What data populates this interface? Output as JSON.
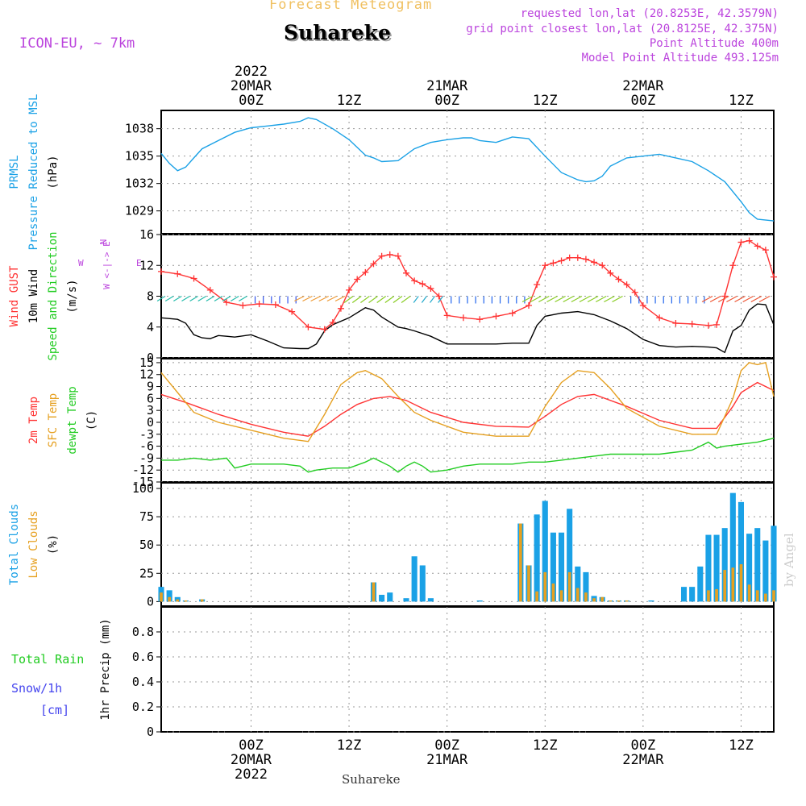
{
  "header": {
    "product": "Forecast Meteogram",
    "station": "Suhareke",
    "model": "ICON-EU, ~ 7km",
    "requested": "requested lon,lat (20.8253E, 42.3579N)",
    "grid": "grid point closest lon,lat (20.8125E, 42.375N)",
    "point_alt": "Point Altitude 400m",
    "model_alt": "Model Point Altitude 493.125m",
    "footer_station": "Suhareke",
    "credit": "by Angel"
  },
  "time_axis": {
    "top_labels": [
      {
        "hour": 24,
        "lines": [
          "2022",
          "20MAR",
          "00Z"
        ]
      },
      {
        "hour": 36,
        "lines": [
          "12Z"
        ]
      },
      {
        "hour": 48,
        "lines": [
          "21MAR",
          "00Z"
        ]
      },
      {
        "hour": 60,
        "lines": [
          "12Z"
        ]
      },
      {
        "hour": 72,
        "lines": [
          "22MAR",
          "00Z"
        ]
      },
      {
        "hour": 84,
        "lines": [
          "12Z"
        ]
      }
    ],
    "bottom_labels": [
      {
        "hour": 24,
        "lines": [
          "00Z",
          "20MAR",
          "2022"
        ]
      },
      {
        "hour": 36,
        "lines": [
          "12Z"
        ]
      },
      {
        "hour": 48,
        "lines": [
          "00Z",
          "21MAR"
        ]
      },
      {
        "hour": 60,
        "lines": [
          "12Z"
        ]
      },
      {
        "hour": 72,
        "lines": [
          "00Z",
          "22MAR"
        ]
      },
      {
        "hour": 84,
        "lines": [
          "12Z"
        ]
      }
    ],
    "range_hours": [
      13,
      88
    ],
    "grid_hours": [
      24,
      36,
      48,
      60,
      72,
      84
    ]
  },
  "panels": {
    "pressure": {
      "labels": [
        {
          "text": "PRMSL",
          "color": "#1aa1e6"
        },
        {
          "text": "Pressure Reduced to MSL",
          "color": "#1aa1e6"
        },
        {
          "text": "(hPa)",
          "color": "#000000"
        }
      ],
      "ticks": [
        1029,
        1032,
        1035,
        1038
      ],
      "range": [
        1026.5,
        1040
      ]
    },
    "wind": {
      "labels": [
        {
          "text": "Wind GUST",
          "color": "#ff3333"
        },
        {
          "text": "10m Wind",
          "color": "#000000"
        },
        {
          "text": "Speed and Direction",
          "color": "#22cc22"
        },
        {
          "text": "(m/s)",
          "color": "#000000"
        }
      ],
      "ticks": [
        0,
        4,
        8,
        12,
        16
      ],
      "range": [
        0,
        16
      ],
      "compass": "N W <-|-> E S"
    },
    "temp": {
      "labels": [
        {
          "text": "2m Temp",
          "color": "#ff3333"
        },
        {
          "text": "SFC Temp",
          "color": "#e6a020"
        },
        {
          "text": "dewpt Temp",
          "color": "#22cc22"
        },
        {
          "text": "(C)",
          "color": "#000000"
        }
      ],
      "ticks": [
        -15,
        -12,
        -9,
        -6,
        -3,
        0,
        3,
        6,
        9,
        12,
        15
      ],
      "range": [
        -15,
        16
      ]
    },
    "clouds": {
      "labels": [
        {
          "text": "Total Clouds",
          "color": "#1aa1e6"
        },
        {
          "text": "Low Clouds",
          "color": "#e6a020"
        },
        {
          "text": "(%)",
          "color": "#000000"
        }
      ],
      "ticks": [
        0,
        25,
        50,
        75,
        100
      ],
      "range": [
        -4,
        105
      ]
    },
    "precip": {
      "labels": [
        {
          "text": "1hr Precip (mm)",
          "color": "#000000"
        }
      ],
      "side_labels": [
        {
          "text": "Total  Rain",
          "color": "#22cc22"
        },
        {
          "text": "Snow/1h",
          "color": "#4444ee"
        },
        {
          "text": "[cm]",
          "color": "#4444ee"
        }
      ],
      "ticks": [
        0,
        0.2,
        0.4,
        0.6,
        0.8
      ],
      "range": [
        0,
        1
      ]
    }
  },
  "colors": {
    "pressure": "#1aa1e6",
    "gust": "#ff3333",
    "wind": "#000000",
    "t2m": "#ff3333",
    "sfc": "#e6a020",
    "dew": "#22cc22",
    "total_clouds": "#1aa1e6",
    "low_clouds": "#e6a020",
    "grid": "#999999",
    "title_orange": "#f0c060",
    "purple": "#bb44dd"
  },
  "chart_data": [
    {
      "type": "line",
      "name": "pressure",
      "ylabel": "PRMSL Pressure Reduced to MSL (hPa)",
      "x": [
        13,
        14,
        15,
        16,
        17,
        18,
        20,
        22,
        24,
        26,
        28,
        30,
        31,
        32,
        34,
        36,
        38,
        39,
        40,
        42,
        44,
        46,
        48,
        50,
        51,
        52,
        54,
        55,
        56,
        58,
        60,
        62,
        64,
        65,
        66,
        67,
        68,
        70,
        72,
        74,
        76,
        78,
        80,
        82,
        84,
        85,
        86,
        88
      ],
      "y": [
        1035.3,
        1034.2,
        1033.4,
        1033.8,
        1034.8,
        1035.8,
        1036.7,
        1037.6,
        1038.1,
        1038.3,
        1038.5,
        1038.8,
        1039.2,
        1039.0,
        1038.0,
        1036.8,
        1035.1,
        1034.8,
        1034.4,
        1034.5,
        1035.8,
        1036.5,
        1036.8,
        1037.0,
        1037.0,
        1036.7,
        1036.5,
        1036.8,
        1037.1,
        1036.9,
        1035.0,
        1033.2,
        1032.4,
        1032.2,
        1032.3,
        1032.8,
        1033.9,
        1034.8,
        1035.0,
        1035.2,
        1034.8,
        1034.4,
        1033.4,
        1032.2,
        1030.0,
        1028.8,
        1028.1,
        1027.9
      ]
    },
    {
      "type": "line",
      "name": "wind_gust",
      "ylabel": "Wind GUST (m/s)",
      "x": [
        13,
        15,
        17,
        19,
        21,
        23,
        25,
        27,
        29,
        31,
        33,
        34,
        35,
        36,
        37,
        38,
        39,
        40,
        41,
        42,
        43,
        44,
        45,
        46,
        47,
        48,
        50,
        52,
        54,
        56,
        58,
        59,
        60,
        61,
        62,
        63,
        64,
        65,
        66,
        67,
        68,
        69,
        70,
        71,
        72,
        74,
        76,
        78,
        80,
        81,
        82,
        83,
        84,
        85,
        86,
        87,
        88
      ],
      "y": [
        11.2,
        10.9,
        10.3,
        8.8,
        7.2,
        6.8,
        7.0,
        6.9,
        6.0,
        4.0,
        3.7,
        4.6,
        6.4,
        8.8,
        10.2,
        11.1,
        12.2,
        13.2,
        13.4,
        13.2,
        11.0,
        10.0,
        9.6,
        9.0,
        8.0,
        5.5,
        5.2,
        5.0,
        5.4,
        5.8,
        6.8,
        9.5,
        12.0,
        12.3,
        12.6,
        13.0,
        13.0,
        12.8,
        12.4,
        12.0,
        11.0,
        10.2,
        9.5,
        8.5,
        6.8,
        5.2,
        4.5,
        4.4,
        4.2,
        4.3,
        8.0,
        12.0,
        15.0,
        15.2,
        14.5,
        14.0,
        10.5
      ]
    },
    {
      "type": "line",
      "name": "wind_10m",
      "ylabel": "10m Wind (m/s)",
      "x": [
        13,
        15,
        16,
        17,
        18,
        19,
        20,
        21,
        22,
        24,
        26,
        28,
        30,
        31,
        32,
        33,
        34,
        36,
        38,
        39,
        40,
        42,
        43,
        44,
        46,
        48,
        50,
        52,
        54,
        56,
        58,
        59,
        60,
        62,
        64,
        66,
        68,
        70,
        72,
        74,
        76,
        78,
        80,
        81,
        82,
        83,
        84,
        85,
        86,
        87,
        88
      ],
      "y": [
        5.2,
        5.0,
        4.5,
        3.0,
        2.6,
        2.5,
        2.9,
        2.8,
        2.7,
        3.0,
        2.2,
        1.3,
        1.2,
        1.2,
        1.8,
        3.5,
        4.3,
        5.2,
        6.5,
        6.2,
        5.3,
        4.0,
        3.8,
        3.5,
        2.8,
        1.8,
        1.8,
        1.8,
        1.8,
        1.9,
        1.9,
        4.2,
        5.4,
        5.8,
        6.0,
        5.6,
        4.8,
        3.8,
        2.4,
        1.6,
        1.4,
        1.5,
        1.4,
        1.3,
        0.7,
        3.5,
        4.2,
        6.2,
        7.0,
        6.9,
        4.3
      ]
    },
    {
      "type": "line",
      "name": "t2m",
      "ylabel": "2m Temp (C)",
      "x": [
        13,
        16,
        20,
        24,
        28,
        31,
        33,
        35,
        37,
        39,
        41,
        43,
        46,
        50,
        54,
        58,
        60,
        62,
        64,
        66,
        70,
        74,
        78,
        81,
        83,
        84,
        86,
        88
      ],
      "y": [
        7.0,
        5.0,
        2.0,
        -0.5,
        -2.5,
        -3.5,
        -1.0,
        2.0,
        4.5,
        6.0,
        6.5,
        5.5,
        2.5,
        0.0,
        -1.0,
        -1.2,
        1.5,
        4.5,
        6.5,
        7.0,
        4.0,
        0.5,
        -1.5,
        -1.5,
        4.0,
        7.5,
        10.0,
        8.0
      ]
    },
    {
      "type": "line",
      "name": "sfc_temp",
      "ylabel": "SFC Temp (C)",
      "x": [
        13,
        15,
        17,
        20,
        24,
        28,
        31,
        33,
        35,
        37,
        38,
        40,
        42,
        44,
        46,
        50,
        54,
        58,
        60,
        62,
        64,
        66,
        68,
        70,
        74,
        78,
        81,
        83,
        84,
        85,
        86,
        87,
        88
      ],
      "y": [
        12.5,
        7.5,
        2.5,
        0.0,
        -2.0,
        -4.0,
        -4.8,
        2.0,
        9.5,
        12.5,
        13.0,
        11.0,
        6.5,
        2.5,
        0.5,
        -2.5,
        -3.5,
        -3.5,
        4.0,
        10.0,
        13.0,
        12.5,
        8.5,
        3.5,
        -1.0,
        -3.0,
        -3.0,
        6.0,
        13.0,
        15.0,
        14.5,
        15.0,
        6.5
      ]
    },
    {
      "type": "line",
      "name": "dewpoint",
      "ylabel": "dewpt Temp (C)",
      "x": [
        13,
        15,
        17,
        19,
        21,
        22,
        23,
        24,
        26,
        28,
        30,
        31,
        32,
        34,
        36,
        38,
        39,
        40,
        41,
        42,
        43,
        44,
        45,
        46,
        48,
        50,
        52,
        54,
        56,
        58,
        60,
        62,
        64,
        66,
        68,
        70,
        72,
        74,
        76,
        78,
        80,
        81,
        82,
        84,
        86,
        88
      ],
      "y": [
        -9.5,
        -9.5,
        -9.0,
        -9.5,
        -9.0,
        -11.5,
        -11.0,
        -10.5,
        -10.5,
        -10.5,
        -11.0,
        -12.5,
        -12.0,
        -11.5,
        -11.5,
        -10.0,
        -9.0,
        -10.0,
        -11.0,
        -12.5,
        -11.0,
        -10.0,
        -11.0,
        -12.5,
        -12.0,
        -11.0,
        -10.5,
        -10.5,
        -10.5,
        -10.0,
        -10.0,
        -9.5,
        -9.0,
        -8.5,
        -8.0,
        -8.0,
        -8.0,
        -8.0,
        -7.5,
        -7.0,
        -5.0,
        -6.5,
        -6.0,
        -5.5,
        -5.0,
        -4.0
      ]
    },
    {
      "type": "bar",
      "name": "total_clouds",
      "ylabel": "Total Clouds (%)",
      "x": [
        13,
        14,
        15,
        16,
        18,
        39,
        40,
        41,
        43,
        44,
        45,
        46,
        52,
        57,
        58,
        59,
        60,
        61,
        62,
        63,
        64,
        65,
        66,
        67,
        68,
        69,
        70,
        73,
        77,
        78,
        79,
        80,
        81,
        82,
        83,
        84,
        85,
        86,
        87,
        88
      ],
      "values": [
        13,
        10,
        4,
        1,
        2,
        17,
        6,
        8,
        3,
        40,
        32,
        3,
        1,
        69,
        32,
        77,
        89,
        61,
        61,
        82,
        31,
        26,
        5,
        4,
        1,
        1,
        1,
        1,
        13,
        13,
        31,
        59,
        59,
        65,
        96,
        88,
        60,
        65,
        54,
        67
      ]
    },
    {
      "type": "bar",
      "name": "low_clouds",
      "ylabel": "Low Clouds (%)",
      "x": [
        13,
        14,
        15,
        16,
        18,
        39,
        57,
        58,
        59,
        60,
        61,
        62,
        63,
        64,
        65,
        66,
        67,
        68,
        69,
        70,
        80,
        81,
        82,
        83,
        84,
        85,
        86,
        87,
        88
      ],
      "values": [
        8,
        4,
        2,
        1,
        2,
        17,
        69,
        32,
        9,
        26,
        16,
        10,
        26,
        12,
        8,
        3,
        4,
        1,
        1,
        1,
        10,
        11,
        28,
        30,
        33,
        15,
        10,
        7,
        10
      ]
    },
    {
      "type": "line",
      "name": "precip_1h",
      "ylabel": "1hr Precip (mm)",
      "x": [
        13,
        88
      ],
      "y": [
        0,
        0
      ]
    }
  ]
}
